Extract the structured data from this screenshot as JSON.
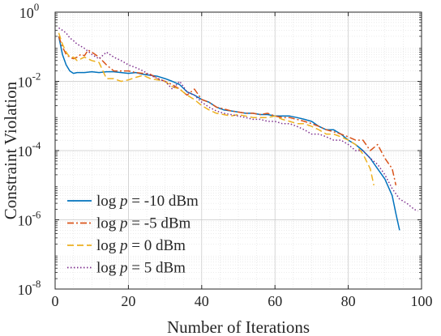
{
  "chart_data": {
    "type": "line",
    "xlabel": "Number of Iterations",
    "ylabel": "Constraint Violation",
    "xlim": [
      0,
      100
    ],
    "ylim": [
      1e-08,
      1
    ],
    "yscale": "log",
    "grid": true,
    "minor_grid": true,
    "legend_position": "bottom-left",
    "x_ticks": [
      "0",
      "20",
      "40",
      "60",
      "80",
      "100"
    ],
    "y_ticks": [
      {
        "base": "10",
        "exp": "-8",
        "value": 1e-08
      },
      {
        "base": "10",
        "exp": "-6",
        "value": 1e-06
      },
      {
        "base": "10",
        "exp": "-4",
        "value": 0.0001
      },
      {
        "base": "10",
        "exp": "-2",
        "value": 0.01
      },
      {
        "base": "10",
        "exp": "0",
        "value": 1
      }
    ],
    "series": [
      {
        "name": "log p = -10 dBm",
        "label_prefix": "log ",
        "label_var": "p",
        "label_suffix": " = -10 dBm",
        "color": "#0072BD",
        "dash": "solid",
        "x": [
          1,
          2,
          3,
          4,
          5,
          6,
          8,
          10,
          12,
          14,
          16,
          18,
          20,
          22,
          24,
          26,
          28,
          30,
          32,
          34,
          36,
          38,
          40,
          42,
          44,
          46,
          48,
          50,
          52,
          54,
          56,
          58,
          60,
          62,
          64,
          66,
          68,
          70,
          72,
          74,
          76,
          78,
          80,
          82,
          84,
          86,
          88,
          90,
          92,
          93,
          94
        ],
        "y": [
          0.2,
          0.06,
          0.03,
          0.02,
          0.017,
          0.018,
          0.018,
          0.019,
          0.018,
          0.019,
          0.019,
          0.018,
          0.017,
          0.018,
          0.016,
          0.015,
          0.014,
          0.012,
          0.01,
          0.008,
          0.005,
          0.004,
          0.003,
          0.0025,
          0.0018,
          0.0015,
          0.0014,
          0.0013,
          0.0012,
          0.0012,
          0.0011,
          0.0011,
          0.001,
          0.001,
          0.001,
          0.0009,
          0.0008,
          0.0007,
          0.0005,
          0.0004,
          0.0004,
          0.0003,
          0.0002,
          0.00015,
          0.0001,
          6e-05,
          3e-05,
          1.5e-05,
          5e-06,
          1.5e-06,
          5e-07
        ]
      },
      {
        "name": "log p = -5 dBm",
        "label_prefix": "log ",
        "label_var": "p",
        "label_suffix": " = -5 dBm",
        "color": "#D95319",
        "dash": "dashdot",
        "x": [
          1,
          2,
          3,
          4,
          5,
          6,
          7,
          8,
          9,
          10,
          12,
          14,
          16,
          18,
          20,
          22,
          24,
          26,
          28,
          30,
          32,
          34,
          36,
          38,
          40,
          42,
          44,
          46,
          48,
          50,
          52,
          54,
          56,
          58,
          60,
          62,
          64,
          66,
          68,
          70,
          72,
          74,
          76,
          78,
          80,
          82,
          84,
          86,
          88,
          90,
          92,
          93
        ],
        "y": [
          0.2,
          0.1,
          0.06,
          0.05,
          0.045,
          0.05,
          0.06,
          0.055,
          0.08,
          0.07,
          0.05,
          0.03,
          0.02,
          0.02,
          0.02,
          0.018,
          0.017,
          0.016,
          0.012,
          0.01,
          0.008,
          0.006,
          0.004,
          0.006,
          0.003,
          0.0025,
          0.0018,
          0.0016,
          0.0014,
          0.0013,
          0.0012,
          0.0012,
          0.0011,
          0.0012,
          0.001,
          0.0009,
          0.0009,
          0.0008,
          0.0007,
          0.0006,
          0.0005,
          0.0004,
          0.00035,
          0.0003,
          0.00025,
          0.0002,
          0.0002,
          0.0001,
          0.00015,
          6e-05,
          3e-05,
          1e-05
        ]
      },
      {
        "name": "log p = 0 dBm",
        "label_prefix": "log ",
        "label_var": "p",
        "label_suffix": " = 0 dBm",
        "color": "#EDB120",
        "dash": "dashed",
        "x": [
          1,
          2,
          3,
          4,
          5,
          6,
          8,
          10,
          12,
          14,
          16,
          18,
          20,
          22,
          24,
          26,
          28,
          30,
          32,
          34,
          36,
          38,
          40,
          42,
          44,
          46,
          48,
          50,
          52,
          54,
          56,
          58,
          60,
          62,
          64,
          66,
          68,
          70,
          72,
          74,
          76,
          78,
          80,
          82,
          84,
          86,
          87
        ],
        "y": [
          0.25,
          0.12,
          0.07,
          0.05,
          0.05,
          0.04,
          0.05,
          0.04,
          0.035,
          0.012,
          0.012,
          0.01,
          0.011,
          0.013,
          0.015,
          0.012,
          0.011,
          0.01,
          0.007,
          0.006,
          0.004,
          0.003,
          0.002,
          0.0015,
          0.0012,
          0.0011,
          0.001,
          0.0011,
          0.001,
          0.0009,
          0.0009,
          0.0009,
          0.001,
          0.0008,
          0.0007,
          0.0006,
          0.0006,
          0.0005,
          0.0004,
          0.0003,
          0.0003,
          0.00025,
          0.0002,
          0.00015,
          8e-05,
          3e-05,
          1e-05
        ]
      },
      {
        "name": "log p = 5 dBm",
        "label_prefix": "log ",
        "label_var": "p",
        "label_suffix": " = 5 dBm",
        "color": "#7E2F8E",
        "dash": "dotted",
        "x": [
          1,
          2,
          3,
          4,
          5,
          6,
          8,
          10,
          12,
          14,
          16,
          18,
          20,
          22,
          24,
          26,
          28,
          30,
          32,
          34,
          36,
          38,
          40,
          42,
          44,
          46,
          48,
          50,
          52,
          54,
          56,
          58,
          60,
          62,
          64,
          66,
          68,
          70,
          72,
          74,
          76,
          78,
          80,
          82,
          84,
          86,
          88,
          90,
          92,
          94,
          96,
          98,
          99
        ],
        "y": [
          0.35,
          0.3,
          0.25,
          0.18,
          0.15,
          0.12,
          0.09,
          0.06,
          0.045,
          0.07,
          0.05,
          0.04,
          0.03,
          0.025,
          0.02,
          0.015,
          0.012,
          0.01,
          0.006,
          0.01,
          0.005,
          0.004,
          0.0025,
          0.0018,
          0.0014,
          0.0012,
          0.0011,
          0.001,
          0.0009,
          0.0008,
          0.0008,
          0.0007,
          0.0007,
          0.0006,
          0.0006,
          0.0005,
          0.0004,
          0.0003,
          0.0003,
          0.00025,
          0.0002,
          0.0002,
          0.00015,
          0.0001,
          0.0001,
          6e-05,
          4e-05,
          2e-05,
          8e-06,
          4e-06,
          3e-06,
          2e-06,
          1.8e-06
        ]
      }
    ]
  }
}
